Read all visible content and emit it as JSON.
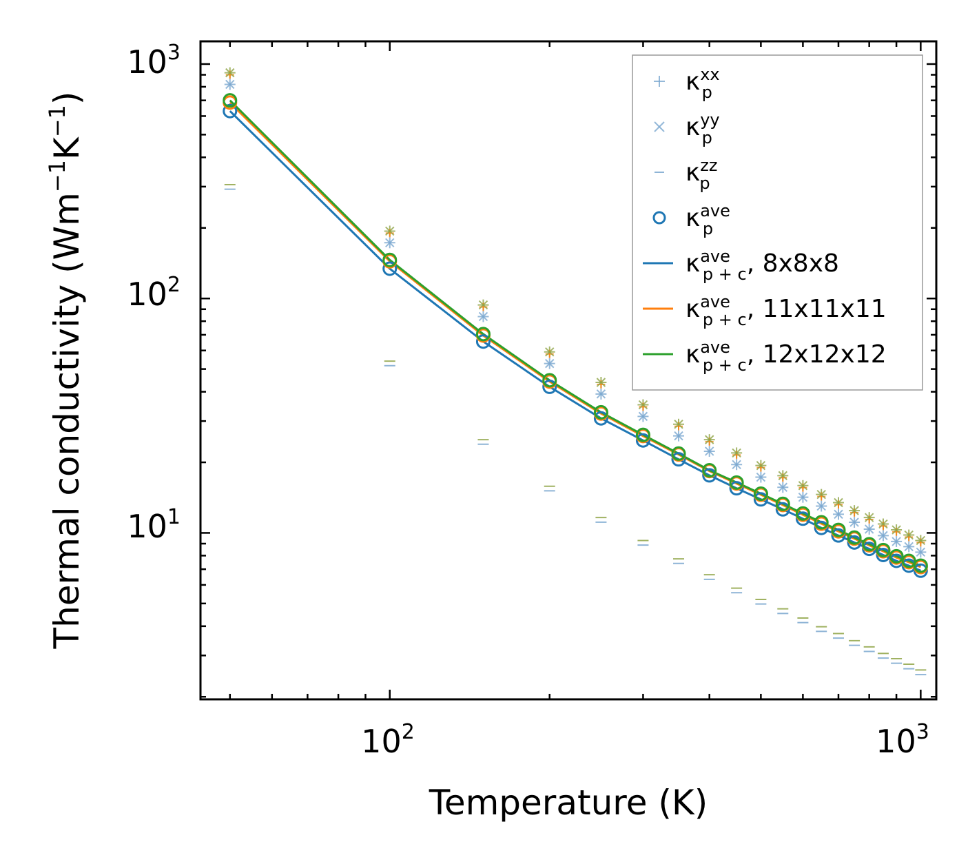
{
  "colors": {
    "blue": "#1f77b4",
    "orange": "#ff7f0e",
    "green": "#2ca02c",
    "olive": "#8fa446",
    "light_blue": "#7aa7cf",
    "axis": "#000000",
    "legend_border": "#999999"
  },
  "chart_data": {
    "type": "line",
    "xscale": "log",
    "yscale": "log",
    "xlim": [
      44,
      1070
    ],
    "ylim": [
      1.95,
      1250
    ],
    "xlabel": "Temperature (K)",
    "ylabel": {
      "text": "Thermal conductivity (Wm",
      "sup1": "−1",
      "mid": "K",
      "sup2": "−1",
      "end": ")"
    },
    "x_ticks": [
      {
        "value": 100,
        "base": "10",
        "exp": "2"
      },
      {
        "value": 1000,
        "base": "10",
        "exp": "3"
      }
    ],
    "y_ticks": [
      {
        "value": 10,
        "base": "10",
        "exp": "1"
      },
      {
        "value": 100,
        "base": "10",
        "exp": "2"
      },
      {
        "value": 1000,
        "base": "10",
        "exp": "3"
      }
    ],
    "grid": false,
    "legend_position": "top-right",
    "x": [
      50,
      100,
      150,
      200,
      250,
      300,
      350,
      400,
      450,
      500,
      550,
      600,
      650,
      700,
      750,
      800,
      850,
      900,
      950,
      1000
    ],
    "series": [
      {
        "name": "kappa_p_xx",
        "legend": {
          "base": "κ",
          "sub": "p",
          "sup": "xx",
          "suffix": ""
        },
        "marker": "plus",
        "values": [
          900,
          190,
          92,
          58,
          43,
          34.5,
          28.5,
          24.5,
          21.5,
          19,
          17.2,
          15.6,
          14.3,
          13.2,
          12.2,
          11.4,
          10.7,
          10.1,
          9.6,
          9.1
        ]
      },
      {
        "name": "kappa_p_yy",
        "legend": {
          "base": "κ",
          "sub": "p",
          "sup": "yy",
          "suffix": ""
        },
        "marker": "x",
        "values": [
          900,
          190,
          92,
          58,
          43,
          34.5,
          28.5,
          24.5,
          21.5,
          19,
          17.2,
          15.6,
          14.3,
          13.2,
          12.2,
          11.4,
          10.7,
          10.1,
          9.6,
          9.1
        ]
      },
      {
        "name": "kappa_p_zz",
        "legend": {
          "base": "κ",
          "sub": "p",
          "sup": "zz",
          "suffix": ""
        },
        "marker": "dash",
        "values": [
          300,
          53,
          24.5,
          15.5,
          11.4,
          9.1,
          7.6,
          6.5,
          5.7,
          5.1,
          4.65,
          4.25,
          3.9,
          3.65,
          3.4,
          3.2,
          3.0,
          2.85,
          2.7,
          2.55
        ]
      },
      {
        "name": "kappa_p_ave",
        "legend": {
          "base": "κ",
          "sub": "p",
          "sup": "ave",
          "suffix": ""
        },
        "marker": "circle",
        "values": [
          690,
          145,
          70,
          44.5,
          32.5,
          26,
          21.7,
          18.4,
          16.3,
          14.6,
          13.2,
          12.0,
          11.0,
          10.2,
          9.5,
          8.9,
          8.4,
          7.9,
          7.55,
          7.2
        ]
      },
      {
        "name": "kappa_pc_ave_8x8x8",
        "legend": {
          "base": "κ",
          "sub": "p + c",
          "sup": "ave",
          "suffix": ", 8x8x8"
        },
        "marker": "line",
        "values": [
          630,
          134,
          65.5,
          42,
          30.8,
          24.8,
          20.6,
          17.6,
          15.5,
          13.9,
          12.6,
          11.5,
          10.5,
          9.75,
          9.1,
          8.55,
          8.05,
          7.6,
          7.25,
          6.9
        ]
      },
      {
        "name": "kappa_pc_ave_11x11x11",
        "legend": {
          "base": "κ",
          "sub": "p + c",
          "sup": "ave",
          "suffix": ", 11x11x11"
        },
        "marker": "line",
        "values": [
          685,
          144,
          69.5,
          44.2,
          32.3,
          25.9,
          21.6,
          18.35,
          16.25,
          14.55,
          13.15,
          11.95,
          10.95,
          10.15,
          9.45,
          8.85,
          8.35,
          7.85,
          7.5,
          7.15
        ]
      },
      {
        "name": "kappa_pc_ave_12x12x12",
        "legend": {
          "base": "κ",
          "sub": "p + c",
          "sup": "ave",
          "suffix": ", 12x12x12"
        },
        "marker": "line",
        "values": [
          700,
          146,
          70.5,
          44.8,
          32.7,
          26.2,
          21.8,
          18.5,
          16.4,
          14.7,
          13.3,
          12.1,
          11.1,
          10.3,
          9.55,
          8.95,
          8.45,
          7.95,
          7.6,
          7.25
        ]
      }
    ]
  }
}
